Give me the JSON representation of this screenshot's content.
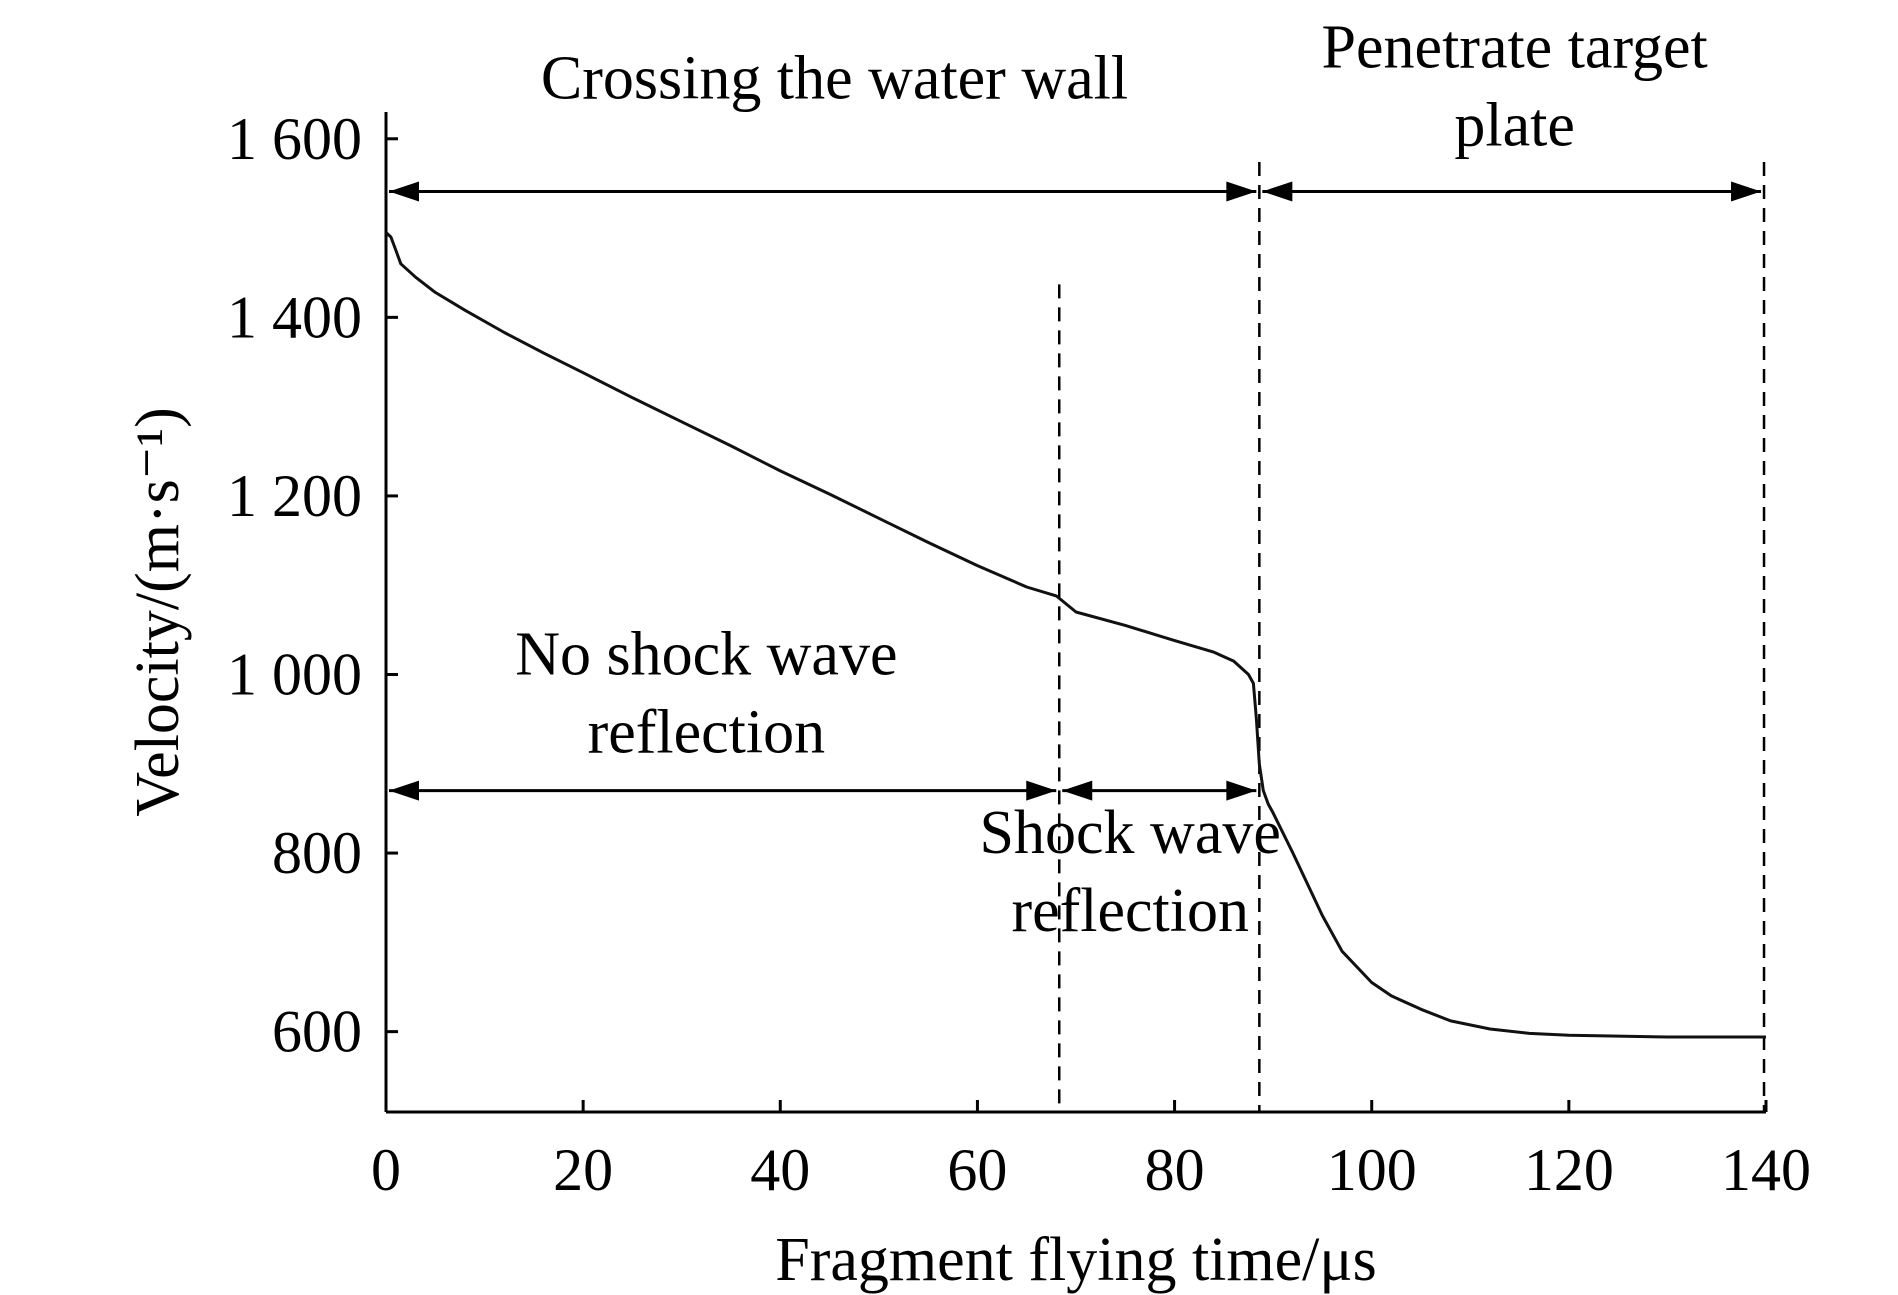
{
  "chart_data": {
    "type": "line",
    "xlabel": "Fragment flying time/μs",
    "ylabel": "Velocity/(m·s⁻¹)",
    "xlim": [
      0,
      140
    ],
    "ylim": [
      510,
      1630
    ],
    "x_ticks": [
      0,
      20,
      40,
      60,
      80,
      100,
      120,
      140
    ],
    "x_tick_labels": [
      "0",
      "20",
      "40",
      "60",
      "80",
      "100",
      "120",
      "140"
    ],
    "y_ticks": [
      600,
      800,
      1000,
      1200,
      1400,
      1600
    ],
    "y_tick_labels": [
      "600",
      "800",
      "1 000",
      "1 200",
      "1 400",
      "1 600"
    ],
    "grid": false,
    "series": [
      {
        "x": [
          0,
          0.5,
          1,
          1.5,
          3,
          5,
          8,
          12,
          16,
          20,
          25,
          30,
          35,
          40,
          45,
          50,
          55,
          60,
          65,
          68,
          70,
          75,
          80,
          84,
          86,
          87.5,
          88,
          88.3,
          88.6,
          89,
          89.5,
          90,
          92,
          95,
          97,
          100,
          102,
          105,
          108,
          112,
          116,
          120,
          125,
          130,
          135,
          140
        ],
        "y": [
          1495,
          1490,
          1475,
          1460,
          1445,
          1428,
          1408,
          1383,
          1360,
          1338,
          1310,
          1283,
          1256,
          1228,
          1202,
          1175,
          1148,
          1122,
          1098,
          1088,
          1070,
          1055,
          1038,
          1025,
          1015,
          1000,
          990,
          950,
          900,
          870,
          855,
          845,
          800,
          730,
          690,
          655,
          640,
          625,
          612,
          603,
          598,
          596,
          595,
          594,
          594,
          594
        ]
      }
    ],
    "reference_lines": [
      {
        "axis": "x",
        "value": 68.3,
        "from_y": 1437,
        "to_y": 510
      },
      {
        "axis": "x",
        "value": 88.6,
        "from_y": 1574,
        "to_y": 510
      },
      {
        "axis": "x",
        "value": 139.8,
        "from_y": 1574,
        "to_y": 510
      }
    ],
    "spans": [
      {
        "id": "water",
        "x1": 0,
        "x2": 88.6,
        "y": 1541
      },
      {
        "id": "target",
        "x1": 88.6,
        "x2": 139.8,
        "y": 1541
      },
      {
        "id": "noshock",
        "x1": 0,
        "x2": 68.3,
        "y": 870
      },
      {
        "id": "shock",
        "x1": 68.3,
        "x2": 88.6,
        "y": 870
      }
    ],
    "annotations": [
      {
        "id": "water-label",
        "lines": [
          "Crossing the water wall"
        ],
        "x": 45.5,
        "y": 1645
      },
      {
        "id": "target-label",
        "lines": [
          "Penetrate target",
          "plate"
        ],
        "x": 114.5,
        "y": 1680
      },
      {
        "id": "noshock-label",
        "lines": [
          "No shock wave",
          "reflection"
        ],
        "x": 32.5,
        "y": 1000
      },
      {
        "id": "shock-label",
        "lines": [
          "Shock wave",
          "reflection"
        ],
        "x": 75.5,
        "y": 800
      }
    ]
  }
}
